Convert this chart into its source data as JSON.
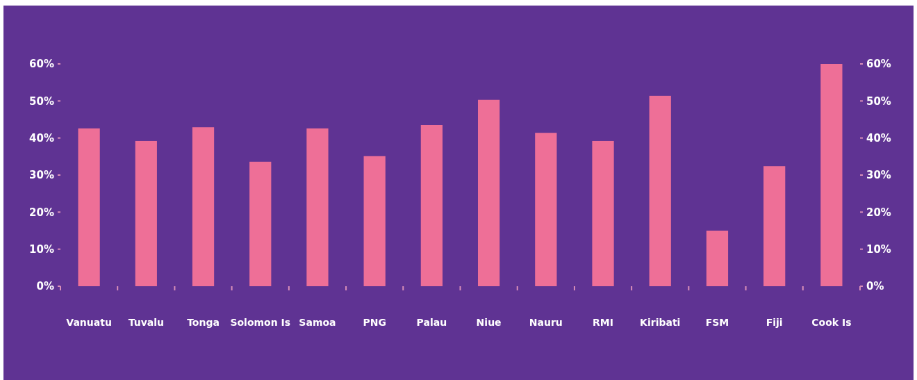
{
  "chart_data": {
    "type": "bar",
    "categories": [
      "Vanuatu",
      "Tuvalu",
      "Tonga",
      "Solomon Is",
      "Samoa",
      "PNG",
      "Palau",
      "Niue",
      "Nauru",
      "RMI",
      "Kiribati",
      "FSM",
      "Fiji",
      "Cook Is"
    ],
    "values": [
      42.6,
      39.2,
      42.9,
      33.6,
      42.6,
      35.1,
      43.5,
      50.3,
      41.4,
      39.2,
      51.4,
      15.0,
      32.4,
      60.0
    ],
    "color": "#ee6f97",
    "ylim": [
      0,
      60
    ],
    "yticks": [
      {
        "value": 0,
        "label": "0%"
      },
      {
        "value": 10,
        "label": "10%"
      },
      {
        "value": 20,
        "label": "20%"
      },
      {
        "value": 30,
        "label": "30%"
      },
      {
        "value": 40,
        "label": "40%"
      },
      {
        "value": 50,
        "label": "50%"
      },
      {
        "value": 60,
        "label": "60%"
      }
    ],
    "y2lim": [
      0,
      60
    ],
    "y2ticks": [
      {
        "value": 0,
        "label": "0%"
      },
      {
        "value": 10,
        "label": "10%"
      },
      {
        "value": 20,
        "label": "20%"
      },
      {
        "value": 30,
        "label": "30%"
      },
      {
        "value": 40,
        "label": "40%"
      },
      {
        "value": 50,
        "label": "50%"
      },
      {
        "value": 60,
        "label": "60%"
      }
    ],
    "grid": false
  }
}
